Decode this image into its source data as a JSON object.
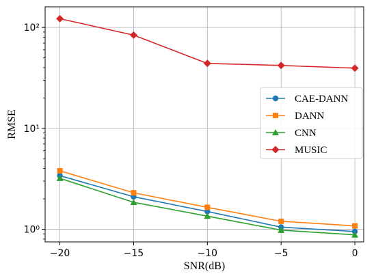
{
  "chart_data": {
    "type": "line",
    "title": "",
    "xlabel": "SNR(dB)",
    "ylabel": "RMSE",
    "x": [
      -20,
      -15,
      -10,
      -5,
      0
    ],
    "xlim": [
      -21,
      0.6
    ],
    "ylim": [
      0.75,
      160
    ],
    "yscale": "log",
    "xticks": [
      -20,
      -15,
      -10,
      -5,
      0
    ],
    "xtick_labels": [
      "−20",
      "−15",
      "−10",
      "−5",
      "0"
    ],
    "yticks": [
      1,
      10,
      100
    ],
    "ytick_labels": [
      "10⁰",
      "10¹",
      "10²"
    ],
    "grid": true,
    "legend": "center-right",
    "series": [
      {
        "name": "CAE-DANN",
        "color": "#1f77b4",
        "marker": "circle",
        "values": [
          3.4,
          2.1,
          1.5,
          1.05,
          0.95
        ]
      },
      {
        "name": "DANN",
        "color": "#ff7f0e",
        "marker": "square",
        "values": [
          3.8,
          2.3,
          1.65,
          1.2,
          1.08
        ]
      },
      {
        "name": "CNN",
        "color": "#2ca02c",
        "marker": "triangle",
        "values": [
          3.2,
          1.85,
          1.35,
          0.98,
          0.88
        ]
      },
      {
        "name": "MUSIC",
        "color": "#d62728",
        "marker": "diamond",
        "values": [
          122,
          84,
          44,
          42,
          39.5
        ]
      }
    ]
  }
}
